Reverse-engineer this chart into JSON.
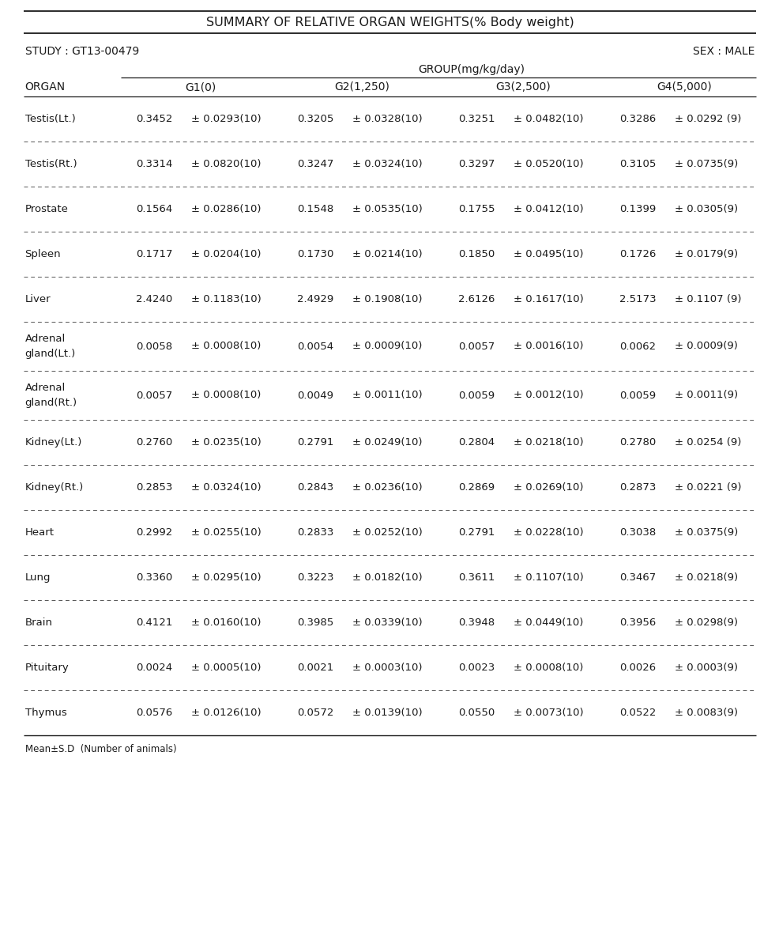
{
  "title": "SUMMARY OF RELATIVE ORGAN WEIGHTS(% Body weight)",
  "study": "STUDY : GT13-00479",
  "sex": "SEX : MALE",
  "group_header": "GROUP(mg/kg/day)",
  "groups": [
    "G1(0)",
    "G2(1,250)",
    "G3(2,500)",
    "G4(5,000)"
  ],
  "organ_col_header": "ORGAN",
  "footnote": "Mean±S.D  (Number of animals)",
  "rows": [
    {
      "organ": "Testis(Lt.)",
      "multiline": false,
      "data": [
        {
          "mean": "0.3452",
          "sd": "± 0.0293(10)"
        },
        {
          "mean": "0.3205",
          "sd": "± 0.0328(10)"
        },
        {
          "mean": "0.3251",
          "sd": "± 0.0482(10)"
        },
        {
          "mean": "0.3286",
          "sd": "± 0.0292 (9)"
        }
      ]
    },
    {
      "organ": "Testis(Rt.)",
      "multiline": false,
      "data": [
        {
          "mean": "0.3314",
          "sd": "± 0.0820(10)"
        },
        {
          "mean": "0.3247",
          "sd": "± 0.0324(10)"
        },
        {
          "mean": "0.3297",
          "sd": "± 0.0520(10)"
        },
        {
          "mean": "0.3105",
          "sd": "± 0.0735(9)"
        }
      ]
    },
    {
      "organ": "Prostate",
      "multiline": false,
      "data": [
        {
          "mean": "0.1564",
          "sd": "± 0.0286(10)"
        },
        {
          "mean": "0.1548",
          "sd": "± 0.0535(10)"
        },
        {
          "mean": "0.1755",
          "sd": "± 0.0412(10)"
        },
        {
          "mean": "0.1399",
          "sd": "± 0.0305(9)"
        }
      ]
    },
    {
      "organ": "Spleen",
      "multiline": false,
      "data": [
        {
          "mean": "0.1717",
          "sd": "± 0.0204(10)"
        },
        {
          "mean": "0.1730",
          "sd": "± 0.0214(10)"
        },
        {
          "mean": "0.1850",
          "sd": "± 0.0495(10)"
        },
        {
          "mean": "0.1726",
          "sd": "± 0.0179(9)"
        }
      ]
    },
    {
      "organ": "Liver",
      "multiline": false,
      "data": [
        {
          "mean": "2.4240",
          "sd": "± 0.1183(10)"
        },
        {
          "mean": "2.4929",
          "sd": "± 0.1908(10)"
        },
        {
          "mean": "2.6126",
          "sd": "± 0.1617(10)"
        },
        {
          "mean": "2.5173",
          "sd": "± 0.1107 (9)"
        }
      ]
    },
    {
      "organ": "Adrenal\ngland(Lt.)",
      "multiline": true,
      "data": [
        {
          "mean": "0.0058",
          "sd": "± 0.0008(10)"
        },
        {
          "mean": "0.0054",
          "sd": "± 0.0009(10)"
        },
        {
          "mean": "0.0057",
          "sd": "± 0.0016(10)"
        },
        {
          "mean": "0.0062",
          "sd": "± 0.0009(9)"
        }
      ]
    },
    {
      "organ": "Adrenal\ngland(Rt.)",
      "multiline": true,
      "data": [
        {
          "mean": "0.0057",
          "sd": "± 0.0008(10)"
        },
        {
          "mean": "0.0049",
          "sd": "± 0.0011(10)"
        },
        {
          "mean": "0.0059",
          "sd": "± 0.0012(10)"
        },
        {
          "mean": "0.0059",
          "sd": "± 0.0011(9)"
        }
      ]
    },
    {
      "organ": "Kidney(Lt.)",
      "multiline": false,
      "data": [
        {
          "mean": "0.2760",
          "sd": "± 0.0235(10)"
        },
        {
          "mean": "0.2791",
          "sd": "± 0.0249(10)"
        },
        {
          "mean": "0.2804",
          "sd": "± 0.0218(10)"
        },
        {
          "mean": "0.2780",
          "sd": "± 0.0254 (9)"
        }
      ]
    },
    {
      "organ": "Kidney(Rt.)",
      "multiline": false,
      "data": [
        {
          "mean": "0.2853",
          "sd": "± 0.0324(10)"
        },
        {
          "mean": "0.2843",
          "sd": "± 0.0236(10)"
        },
        {
          "mean": "0.2869",
          "sd": "± 0.0269(10)"
        },
        {
          "mean": "0.2873",
          "sd": "± 0.0221 (9)"
        }
      ]
    },
    {
      "organ": "Heart",
      "multiline": false,
      "data": [
        {
          "mean": "0.2992",
          "sd": "± 0.0255(10)"
        },
        {
          "mean": "0.2833",
          "sd": "± 0.0252(10)"
        },
        {
          "mean": "0.2791",
          "sd": "± 0.0228(10)"
        },
        {
          "mean": "0.3038",
          "sd": "± 0.0375(9)"
        }
      ]
    },
    {
      "organ": "Lung",
      "multiline": false,
      "data": [
        {
          "mean": "0.3360",
          "sd": "± 0.0295(10)"
        },
        {
          "mean": "0.3223",
          "sd": "± 0.0182(10)"
        },
        {
          "mean": "0.3611",
          "sd": "± 0.1107(10)"
        },
        {
          "mean": "0.3467",
          "sd": "± 0.0218(9)"
        }
      ]
    },
    {
      "organ": "Brain",
      "multiline": false,
      "data": [
        {
          "mean": "0.4121",
          "sd": "± 0.0160(10)"
        },
        {
          "mean": "0.3985",
          "sd": "± 0.0339(10)"
        },
        {
          "mean": "0.3948",
          "sd": "± 0.0449(10)"
        },
        {
          "mean": "0.3956",
          "sd": "± 0.0298(9)"
        }
      ]
    },
    {
      "organ": "Pituitary",
      "multiline": false,
      "data": [
        {
          "mean": "0.0024",
          "sd": "± 0.0005(10)"
        },
        {
          "mean": "0.0021",
          "sd": "± 0.0003(10)"
        },
        {
          "mean": "0.0023",
          "sd": "± 0.0008(10)"
        },
        {
          "mean": "0.0026",
          "sd": "± 0.0003(9)"
        }
      ]
    },
    {
      "organ": "Thymus",
      "multiline": false,
      "data": [
        {
          "mean": "0.0576",
          "sd": "± 0.0126(10)"
        },
        {
          "mean": "0.0572",
          "sd": "± 0.0139(10)"
        },
        {
          "mean": "0.0550",
          "sd": "± 0.0073(10)"
        },
        {
          "mean": "0.0522",
          "sd": "± 0.0083(9)"
        }
      ]
    }
  ],
  "bg_color": "#ffffff",
  "text_color": "#1a1a1a",
  "line_color": "#555555",
  "font_size": 9.5,
  "title_font_size": 11.5,
  "fig_width": 9.87,
  "fig_height": 11.99,
  "dpi": 100
}
